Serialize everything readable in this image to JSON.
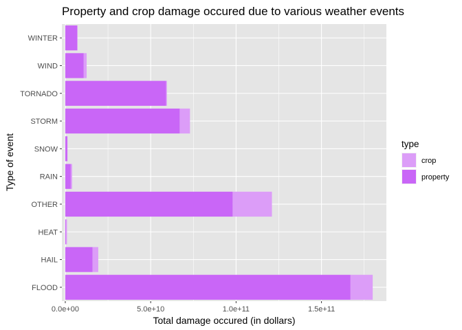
{
  "chart_data": {
    "type": "bar",
    "orientation": "horizontal",
    "stacked": true,
    "title": "Property and crop damage occured due to various weather events",
    "xlabel": "Total damage occured (in dollars)",
    "ylabel": "Type of event",
    "categories": [
      "FLOOD",
      "HAIL",
      "HEAT",
      "OTHER",
      "RAIN",
      "SNOW",
      "STORM",
      "TORNADO",
      "WIND",
      "WINTER"
    ],
    "series": [
      {
        "name": "property",
        "color": "#c966f7",
        "values": [
          167000000000.0,
          16000000000.0,
          500000000.0,
          98000000000.0,
          3200000000.0,
          1200000000.0,
          67000000000.0,
          59000000000.0,
          10800000000.0,
          7000000000.0
        ]
      },
      {
        "name": "crop",
        "color": "#dc9df8",
        "values": [
          13000000000.0,
          3300000000.0,
          500000000.0,
          23000000000.0,
          800000000.0,
          100000000.0,
          6000000000.0,
          500000000.0,
          1700000000.0,
          200000000.0
        ]
      }
    ],
    "xlim": [
      -2000000000.0,
      188000000000.0
    ],
    "xticks": [
      0,
      50000000000.0,
      100000000000.0,
      150000000000.0
    ],
    "xtick_labels": [
      "0.0e+00",
      "5.0e+10",
      "1.0e+11",
      "1.5e+11"
    ],
    "legend": {
      "title": "type",
      "entries": [
        "crop",
        "property"
      ],
      "position": "right"
    },
    "grid": true,
    "panel_background": "#e5e5e5",
    "grid_color": "#ffffff"
  }
}
